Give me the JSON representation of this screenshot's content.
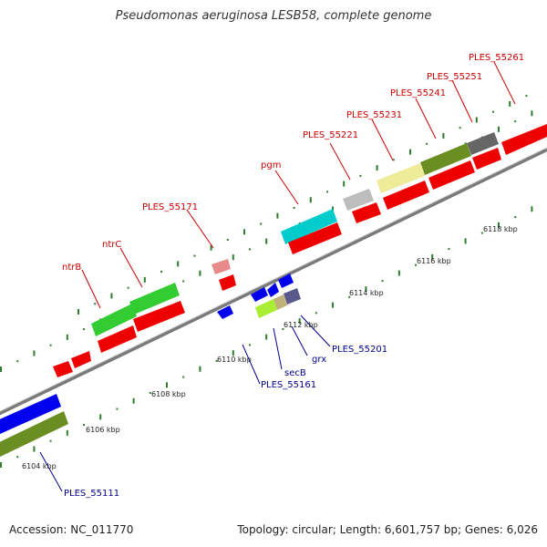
{
  "title": "Pseudomonas aeruginosa LESB58, complete genome",
  "footer": {
    "accession": "Accession: NC_011770",
    "summary": "Topology: circular; Length: 6,601,757 bp; Genes: 6,026"
  },
  "ticks": [
    {
      "label": "6104 kbp"
    },
    {
      "label": "6106 kbp"
    },
    {
      "label": "6108 kbp"
    },
    {
      "label": "6110 kbp"
    },
    {
      "label": "6112 kbp"
    },
    {
      "label": "6114 kbp"
    },
    {
      "label": "6116 kbp"
    },
    {
      "label": "6118 kbp"
    }
  ],
  "upper_labels": [
    "ntrB",
    "ntrC",
    "PLES_55171",
    "pgm",
    "PLES_55221",
    "PLES_55231",
    "PLES_55241",
    "PLES_55251",
    "PLES_55261"
  ],
  "lower_labels": [
    "PLES_55111",
    "6110 kbp",
    "PLES_55161",
    "secB",
    "grx",
    "PLES_55201"
  ],
  "colors": {
    "label_red": "#cc0000",
    "label_blue": "#00008b",
    "cds": "#ff0000",
    "gene_green": "#33cc33",
    "gene_olive": "#6b8e23",
    "gene_cyan": "#00cccc",
    "gene_blue": "#0000ff",
    "backbone": "#808080",
    "tick": "#2e7d32"
  }
}
